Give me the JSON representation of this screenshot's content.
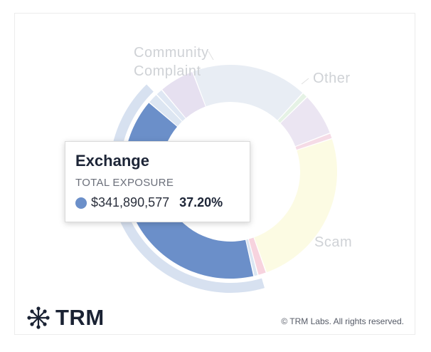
{
  "chart_data": {
    "type": "pie",
    "rings": {
      "inner": [
        {
          "name": "Community Complaint",
          "value": 5.0,
          "color": "#e6e0f0"
        },
        {
          "name": "Other",
          "value": 16.5,
          "color": "#e8edf4"
        },
        {
          "name": "",
          "value": 0.8,
          "color": "#e5f2e5"
        },
        {
          "name": "",
          "value": 6.0,
          "color": "#ebe5f2"
        },
        {
          "name": "",
          "value": 0.8,
          "color": "#f5dbe6"
        },
        {
          "name": "Scam",
          "value": 23.0,
          "color": "#fcfbe3"
        },
        {
          "name": "",
          "value": 1.2,
          "color": "#f7d3de"
        },
        {
          "name": "",
          "value": 0.6,
          "color": "#dbe6f2"
        },
        {
          "name": "Exchange",
          "value": 37.2,
          "color": "#6b8fc9"
        },
        {
          "name": "",
          "value": 1.5,
          "color": "#dde6f2"
        },
        {
          "name": "",
          "value": 1.0,
          "color": "#dfe7f3"
        }
      ]
    },
    "labels": [
      {
        "text": "Community\nComplaint"
      },
      {
        "text": "Other"
      },
      {
        "text": "Scam"
      }
    ]
  },
  "tooltip": {
    "title": "Exchange",
    "subtitle": "TOTAL EXPOSURE",
    "amount": "$341,890,577",
    "percent": "37.20%",
    "color": "#6b8fc9"
  },
  "footer": {
    "logo_text": "TRM",
    "copyright": "© TRM Labs. All rights reserved."
  }
}
